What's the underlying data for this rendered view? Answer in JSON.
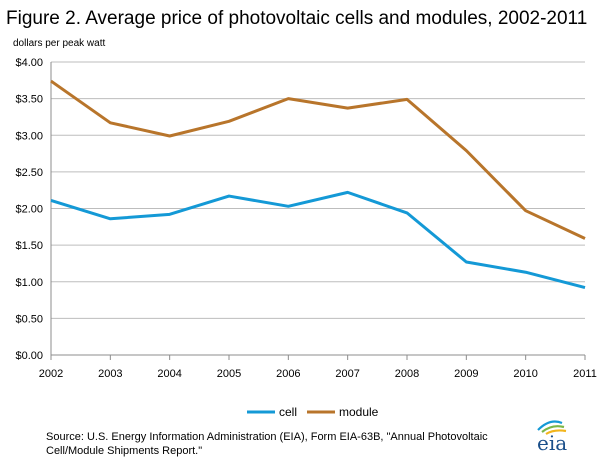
{
  "chart_data": {
    "type": "line",
    "title": "Figure 2. Average price of photovoltaic cells and modules, 2002-2011",
    "ylabel": "dollars per peak watt",
    "xlabel": "",
    "categories": [
      "2002",
      "2003",
      "2004",
      "2005",
      "2006",
      "2007",
      "2008",
      "2009",
      "2010",
      "2011"
    ],
    "series": [
      {
        "name": "cell",
        "color": "#1499d6",
        "values": [
          2.11,
          1.86,
          1.92,
          2.17,
          2.03,
          2.22,
          1.94,
          1.27,
          1.13,
          0.92
        ]
      },
      {
        "name": "module",
        "color": "#b8752b",
        "values": [
          3.74,
          3.17,
          2.99,
          3.19,
          3.5,
          3.37,
          3.49,
          2.79,
          1.97,
          1.59
        ]
      }
    ],
    "ylim": [
      0,
      4
    ],
    "yticks": [
      0,
      0.5,
      1,
      1.5,
      2,
      2.5,
      3,
      3.5,
      4
    ],
    "ytick_labels": [
      "$0.00",
      "$0.50",
      "$1.00",
      "$1.50",
      "$2.00",
      "$2.50",
      "$3.00",
      "$3.50",
      "$4.00"
    ],
    "grid": true,
    "legend": "bottom"
  },
  "source_text": "Source: U.S. Energy Information Administration (EIA), Form EIA-63B, \"Annual Photovoltaic Cell/Module Shipments Report.\"",
  "logo_text": "eia"
}
